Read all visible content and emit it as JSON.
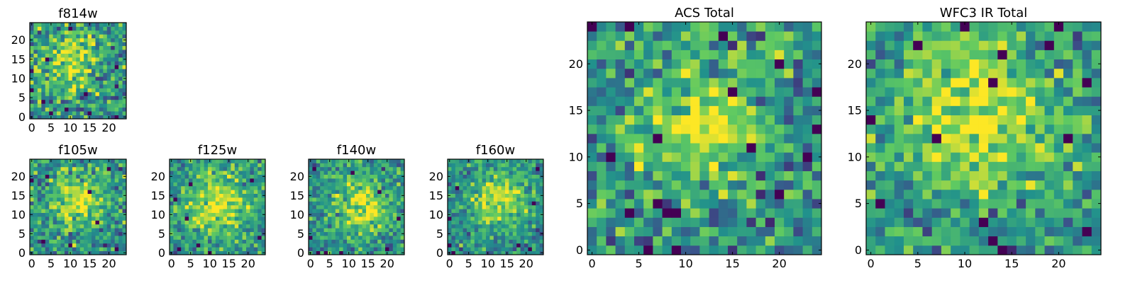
{
  "figure": {
    "title": "",
    "colormap": [
      "#440154",
      "#3b528b",
      "#21918c",
      "#5ec962",
      "#fde725"
    ],
    "frame_color": "#000000"
  },
  "chart_data": [
    {
      "type": "heatmap",
      "title": "f814w",
      "grid_size": 25,
      "xlim": [
        0,
        24
      ],
      "ylim": [
        0,
        24
      ],
      "xticks": [
        0,
        5,
        10,
        15,
        20
      ],
      "yticks": [
        0,
        5,
        10,
        15,
        20
      ],
      "peak_center": [
        10,
        15
      ],
      "peak_sigma": 5.0,
      "noise": 0.38,
      "seed": 11,
      "darkest_cells": [
        [
          22,
          0
        ],
        [
          9,
          2
        ],
        [
          3,
          4
        ],
        [
          5,
          1
        ],
        [
          14,
          6
        ],
        [
          0,
          7
        ],
        [
          4,
          15
        ],
        [
          22,
          13
        ],
        [
          10,
          23
        ]
      ]
    },
    {
      "type": "heatmap",
      "title": "f105w",
      "grid_size": 25,
      "xlim": [
        0,
        24
      ],
      "ylim": [
        0,
        24
      ],
      "xticks": [
        0,
        5,
        10,
        15,
        20
      ],
      "yticks": [
        0,
        5,
        10,
        15,
        20
      ],
      "peak_center": [
        12,
        14
      ],
      "peak_sigma": 5.0,
      "noise": 0.32,
      "seed": 23,
      "darkest_cells": [
        [
          10,
          2
        ],
        [
          22,
          1
        ],
        [
          3,
          3
        ],
        [
          17,
          8
        ],
        [
          0,
          19
        ],
        [
          15,
          16
        ],
        [
          4,
          20
        ],
        [
          20,
          22
        ]
      ]
    },
    {
      "type": "heatmap",
      "title": "f125w",
      "grid_size": 25,
      "xlim": [
        0,
        24
      ],
      "ylim": [
        0,
        24
      ],
      "xticks": [
        0,
        5,
        10,
        15,
        20
      ],
      "yticks": [
        0,
        5,
        10,
        15,
        20
      ],
      "peak_center": [
        12,
        13
      ],
      "peak_sigma": 6.0,
      "noise": 0.28,
      "seed": 37,
      "darkest_cells": [
        [
          2,
          1
        ],
        [
          7,
          2
        ],
        [
          10,
          0
        ],
        [
          4,
          9
        ],
        [
          5,
          18
        ],
        [
          21,
          19
        ],
        [
          1,
          14
        ],
        [
          23,
          4
        ]
      ]
    },
    {
      "type": "heatmap",
      "title": "f140w",
      "grid_size": 25,
      "xlim": [
        0,
        24
      ],
      "ylim": [
        0,
        24
      ],
      "xticks": [
        0,
        5,
        10,
        15,
        20
      ],
      "yticks": [
        0,
        5,
        10,
        15,
        20
      ],
      "peak_center": [
        14,
        12
      ],
      "peak_sigma": 5.0,
      "noise": 0.28,
      "seed": 41,
      "darkest_cells": [
        [
          2,
          0
        ],
        [
          4,
          0
        ],
        [
          8,
          0
        ],
        [
          20,
          1
        ],
        [
          0,
          4
        ],
        [
          23,
          9
        ],
        [
          18,
          16
        ],
        [
          1,
          22
        ],
        [
          11,
          21
        ]
      ]
    },
    {
      "type": "heatmap",
      "title": "f160w",
      "grid_size": 25,
      "xlim": [
        0,
        24
      ],
      "ylim": [
        0,
        24
      ],
      "xticks": [
        0,
        5,
        10,
        15,
        20
      ],
      "yticks": [
        0,
        5,
        10,
        15,
        20
      ],
      "peak_center": [
        13,
        14
      ],
      "peak_sigma": 5.0,
      "noise": 0.26,
      "seed": 59,
      "darkest_cells": [
        [
          1,
          0
        ],
        [
          0,
          2
        ],
        [
          18,
          2
        ],
        [
          21,
          1
        ],
        [
          0,
          9
        ],
        [
          2,
          17
        ],
        [
          22,
          13
        ],
        [
          23,
          22
        ]
      ]
    },
    {
      "type": "heatmap",
      "title": "ACS Total",
      "grid_size": 25,
      "xlim": [
        0,
        24
      ],
      "ylim": [
        0,
        24
      ],
      "xticks": [
        0,
        5,
        10,
        15,
        20
      ],
      "yticks": [
        0,
        5,
        10,
        15,
        20
      ],
      "peak_center": [
        12,
        14
      ],
      "peak_sigma": 4.5,
      "noise": 0.34,
      "seed": 71,
      "darkest_cells": [
        [
          0,
          24
        ],
        [
          4,
          24
        ],
        [
          14,
          23
        ],
        [
          20,
          20
        ],
        [
          15,
          17
        ],
        [
          24,
          17
        ],
        [
          7,
          12
        ],
        [
          2,
          10
        ],
        [
          23,
          10
        ],
        [
          7,
          5
        ],
        [
          8,
          4
        ],
        [
          9,
          4
        ],
        [
          4,
          4
        ],
        [
          20,
          6
        ],
        [
          9,
          0
        ],
        [
          6,
          0
        ],
        [
          24,
          13
        ],
        [
          17,
          11
        ]
      ]
    },
    {
      "type": "heatmap",
      "title": "WFC3 IR Total",
      "grid_size": 25,
      "xlim": [
        0,
        24
      ],
      "ylim": [
        0,
        24
      ],
      "xticks": [
        0,
        5,
        10,
        15,
        20
      ],
      "yticks": [
        0,
        5,
        10,
        15,
        20
      ],
      "peak_center": [
        11,
        15
      ],
      "peak_sigma": 6.5,
      "noise": 0.3,
      "seed": 83,
      "darkest_cells": [
        [
          10,
          24
        ],
        [
          20,
          24
        ],
        [
          19,
          22
        ],
        [
          14,
          21
        ],
        [
          0,
          14
        ],
        [
          7,
          12
        ],
        [
          21,
          12
        ],
        [
          1,
          5
        ],
        [
          12,
          3
        ],
        [
          13,
          1
        ],
        [
          14,
          0
        ],
        [
          23,
          2
        ],
        [
          23,
          18
        ],
        [
          13,
          18
        ],
        [
          5,
          22
        ]
      ]
    }
  ]
}
